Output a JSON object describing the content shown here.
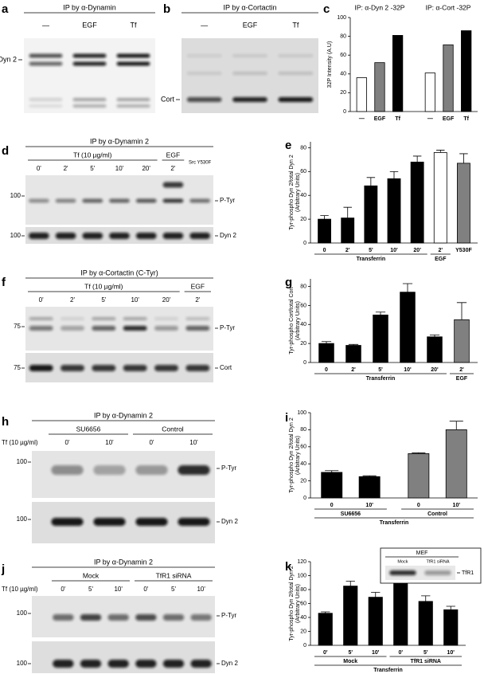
{
  "blots": [
    {
      "letter": "a",
      "title": "IP by α-Dynamin",
      "lanes": [
        "—",
        "EGF",
        "Tf"
      ],
      "labels": [
        "Dyn 2"
      ]
    },
    {
      "letter": "b",
      "title": "IP by α-Cortactin",
      "lanes": [
        "—",
        "EGF",
        "Tf"
      ],
      "labels": [
        "Cort"
      ]
    },
    {
      "letter": "d",
      "title": "IP by α-Dynamin 2",
      "groups": [
        {
          "label": "Tf (10 µg/ml)",
          "lanes": [
            "0'",
            "2'",
            "5'",
            "10'",
            "20'"
          ]
        },
        {
          "label": "EGF",
          "lanes": [
            "2'"
          ]
        },
        {
          "lane": "Src Y530F"
        }
      ],
      "markers": [
        "100",
        "100"
      ],
      "labels": [
        "P-Tyr",
        "Dyn 2"
      ]
    },
    {
      "letter": "f",
      "title": "IP by α-Cortactin (C-Tyr)",
      "groups": [
        {
          "label": "Tf (10 µg/ml)",
          "lanes": [
            "0'",
            "2'",
            "5'",
            "10'",
            "20'"
          ]
        },
        {
          "label": "EGF",
          "lanes": [
            "2'"
          ]
        }
      ],
      "markers": [
        "75",
        "75"
      ],
      "labels": [
        "P-Tyr",
        "Cort"
      ]
    },
    {
      "letter": "h",
      "title": "IP by α-Dynamin 2",
      "row_label": "Tf (10 µg/ml)",
      "groups": [
        {
          "label": "SU6656",
          "lanes": [
            "0'",
            "10'"
          ]
        },
        {
          "label": "Control",
          "lanes": [
            "0'",
            "10'"
          ]
        }
      ],
      "markers": [
        "100",
        "100"
      ],
      "labels": [
        "P-Tyr",
        "Dyn 2"
      ]
    },
    {
      "letter": "j",
      "title": "IP by α-Dynamin 2",
      "row_label": "Tf (10 µg/ml)",
      "groups": [
        {
          "label": "Mock",
          "lanes": [
            "0'",
            "5'",
            "10'"
          ]
        },
        {
          "label": "TfR1 siRNA",
          "lanes": [
            "0'",
            "5'",
            "10'"
          ]
        }
      ],
      "markers": [
        "100",
        "100"
      ],
      "labels": [
        "P-Tyr",
        "Dyn 2"
      ]
    }
  ],
  "chart_data": [
    {
      "type": "bar",
      "letter": "c",
      "ylabel": [
        "32P Intensity (A.U)"
      ],
      "ylim": [
        0,
        100
      ],
      "yticks": [
        0,
        20,
        40,
        60,
        80,
        100
      ],
      "groups": [
        {
          "title": "IP: α-Dyn 2 -32P",
          "categories": [
            "—",
            "EGF",
            "Tf"
          ]
        },
        {
          "title": "IP: α-Cort -32P",
          "categories": [
            "—",
            "EGF",
            "Tf"
          ]
        }
      ],
      "values": [
        36,
        52,
        81,
        41,
        71,
        86
      ],
      "colors": [
        "#ffffff",
        "#808080",
        "#000000",
        "#ffffff",
        "#808080",
        "#000000"
      ]
    },
    {
      "type": "bar",
      "letter": "e",
      "ylabel": [
        "Tyr-phospho Dyn 2/total Dyn 2",
        "(Arbitrary Units)"
      ],
      "ylim": [
        0,
        85
      ],
      "yticks": [
        0,
        20,
        40,
        60,
        80
      ],
      "groups": [
        {
          "label": "Transferrin",
          "categories": [
            "0",
            "2'",
            "5'",
            "10'",
            "20'"
          ]
        },
        {
          "label": "EGF",
          "categories": [
            "2'"
          ]
        },
        {
          "categories": [
            "Y530F"
          ]
        }
      ],
      "values": [
        20,
        21,
        48,
        54,
        68,
        76,
        67
      ],
      "errors": [
        3,
        9,
        7,
        6,
        5,
        2,
        8
      ],
      "colors": [
        "#000000",
        "#000000",
        "#000000",
        "#000000",
        "#000000",
        "#ffffff",
        "#808080"
      ]
    },
    {
      "type": "bar",
      "letter": "g",
      "ylabel": [
        "Tyr-phospho Cort/total Cort",
        "(Arbitrary Units)"
      ],
      "ylim": [
        0,
        88
      ],
      "yticks": [
        0,
        20,
        40,
        60,
        80
      ],
      "groups": [
        {
          "label": "Transferrin",
          "categories": [
            "0",
            "2'",
            "5'",
            "10'",
            "20'"
          ]
        },
        {
          "label": "EGF",
          "categories": [
            "2'"
          ]
        }
      ],
      "values": [
        20,
        18,
        50,
        74,
        27,
        45
      ],
      "errors": [
        2,
        1,
        3,
        9,
        2,
        18
      ],
      "colors": [
        "#000000",
        "#000000",
        "#000000",
        "#000000",
        "#000000",
        "#808080"
      ]
    },
    {
      "type": "bar",
      "letter": "i",
      "ylabel": [
        "Tyr-phospho Dyn 2/total Dyn 2",
        "(Arbitrary Units)"
      ],
      "ylim": [
        0,
        100
      ],
      "yticks": [
        0,
        20,
        40,
        60,
        80,
        100
      ],
      "groups": [
        {
          "label": "SU6656",
          "categories": [
            "0",
            "10'"
          ]
        },
        {
          "label": "Control",
          "categories": [
            "0",
            "10'"
          ]
        }
      ],
      "xlabel": "Transferrin",
      "values": [
        30,
        25,
        52,
        80
      ],
      "errors": [
        2,
        1,
        1,
        10
      ],
      "colors": [
        "#000000",
        "#000000",
        "#808080",
        "#808080"
      ]
    },
    {
      "type": "bar",
      "letter": "k",
      "ylabel": [
        "Tyr-phospho Dyn 2/total Dyn 2",
        "(Arbitrary Units)"
      ],
      "ylim": [
        0,
        120
      ],
      "yticks": [
        0,
        20,
        40,
        60,
        80,
        100,
        120
      ],
      "groups": [
        {
          "label": "Mock",
          "categories": [
            "0'",
            "5'",
            "10'"
          ]
        },
        {
          "label": "TfR1 siRNA",
          "categories": [
            "0'",
            "5'",
            "10'"
          ]
        }
      ],
      "xlabel": "Transferrin",
      "values": [
        46,
        85,
        69,
        99,
        63,
        51
      ],
      "errors": [
        2,
        7,
        7,
        4,
        8,
        5
      ],
      "colors": [
        "#000000",
        "#000000",
        "#000000",
        "#000000",
        "#000000",
        "#000000"
      ],
      "inset": {
        "title": "MEF",
        "lanes": [
          "Mock",
          "TfR1 siRNA"
        ],
        "label": "TfR1"
      }
    }
  ]
}
